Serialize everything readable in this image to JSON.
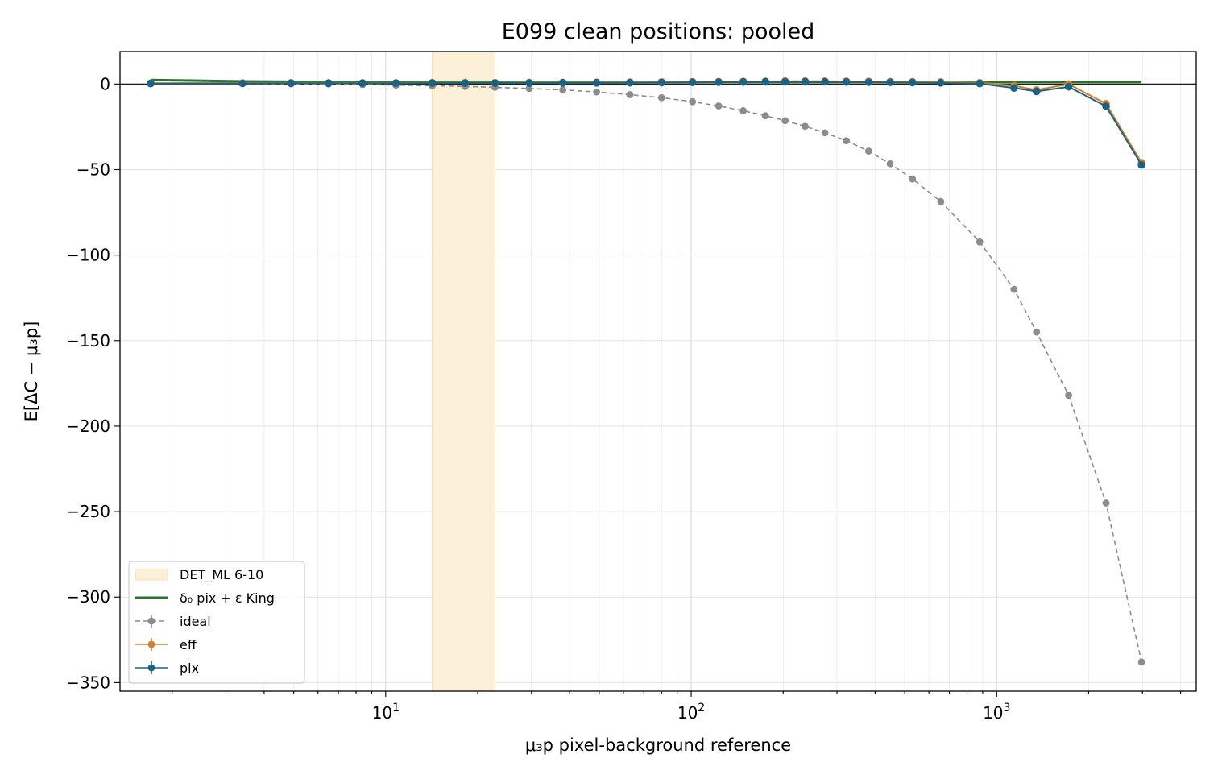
{
  "chart_data": {
    "type": "line",
    "title": "E099 clean positions: pooled",
    "xlabel": "μ₃p pixel-background reference",
    "ylabel": "E[ΔC − μ₃p]",
    "x_scale": "log",
    "xlim": [
      1.35,
      4500
    ],
    "ylim": [
      -355,
      19
    ],
    "grid": true,
    "legend_position": "lower-left",
    "x_ticks": [
      {
        "value": 10,
        "base": "10",
        "exp": "1"
      },
      {
        "value": 100,
        "base": "10",
        "exp": "2"
      },
      {
        "value": 1000,
        "base": "10",
        "exp": "3"
      }
    ],
    "y_ticks": [
      {
        "value": 0,
        "label": "0"
      },
      {
        "value": -50,
        "label": "−50"
      },
      {
        "value": -100,
        "label": "−100"
      },
      {
        "value": -150,
        "label": "−150"
      },
      {
        "value": -200,
        "label": "−200"
      },
      {
        "value": -250,
        "label": "−250"
      },
      {
        "value": -300,
        "label": "−300"
      },
      {
        "value": -350,
        "label": "−350"
      }
    ],
    "band": {
      "name": "DET_ML 6-10",
      "x0": 14.2,
      "x1": 22.8,
      "color": "#fdf0d8",
      "edge": "#f7dfb2"
    },
    "reference_line": {
      "y": 0,
      "color": "#000000"
    },
    "x": [
      1.7,
      3.4,
      4.9,
      6.5,
      8.4,
      10.8,
      14.2,
      18.2,
      22.8,
      29.5,
      38.0,
      49.0,
      63.0,
      80.0,
      101.0,
      123.0,
      148.0,
      175.0,
      203.0,
      236.0,
      274.0,
      322.0,
      381.0,
      448.0,
      530.0,
      656.0,
      880.0,
      1140.0,
      1350.0,
      1720.0,
      2280.0,
      2980.0
    ],
    "series": [
      {
        "name": "δ₀ pix + ε King",
        "color": "#2e7031",
        "style": "solid",
        "markers": false,
        "values": [
          2.4,
          1.6,
          1.4,
          1.3,
          1.2,
          1.2,
          1.2,
          1.2,
          1.2,
          1.2,
          1.2,
          1.2,
          1.2,
          1.2,
          1.2,
          1.2,
          1.2,
          1.2,
          1.2,
          1.2,
          1.2,
          1.2,
          1.2,
          1.2,
          1.2,
          1.2,
          1.2,
          1.2,
          1.2,
          1.2,
          1.2,
          1.2
        ]
      },
      {
        "name": "ideal",
        "color": "#8c8c8c",
        "style": "dashed",
        "markers": true,
        "values": [
          0.3,
          0.2,
          0.1,
          0.0,
          -0.3,
          -0.6,
          -1.0,
          -1.4,
          -1.9,
          -2.6,
          -3.4,
          -4.6,
          -6.2,
          -8.0,
          -10.3,
          -12.8,
          -15.6,
          -18.5,
          -21.4,
          -24.7,
          -28.5,
          -33.1,
          -39.2,
          -46.6,
          -55.5,
          -68.7,
          -92.3,
          -120.0,
          -145.0,
          -182.0,
          -245.0,
          -338.0
        ]
      },
      {
        "name": "eff",
        "color": "#d67f2b",
        "style": "solid",
        "markers": true,
        "values": [
          0.5,
          0.6,
          0.7,
          0.7,
          0.7,
          0.7,
          0.8,
          0.8,
          0.8,
          0.9,
          0.9,
          1.0,
          1.1,
          1.2,
          1.3,
          1.4,
          1.5,
          1.6,
          1.7,
          1.7,
          1.7,
          1.6,
          1.5,
          1.4,
          1.3,
          1.2,
          0.8,
          -1.0,
          -3.5,
          0.0,
          -11.5,
          -46.0
        ]
      },
      {
        "name": "pix",
        "color": "#1b6383",
        "style": "solid",
        "markers": true,
        "values": [
          0.3,
          0.4,
          0.5,
          0.5,
          0.5,
          0.5,
          0.6,
          0.6,
          0.6,
          0.6,
          0.7,
          0.7,
          0.8,
          0.9,
          1.0,
          1.1,
          1.2,
          1.3,
          1.3,
          1.3,
          1.3,
          1.2,
          1.1,
          1.0,
          0.9,
          0.7,
          0.3,
          -2.3,
          -4.3,
          -1.6,
          -13.0,
          -47.3
        ]
      }
    ]
  }
}
